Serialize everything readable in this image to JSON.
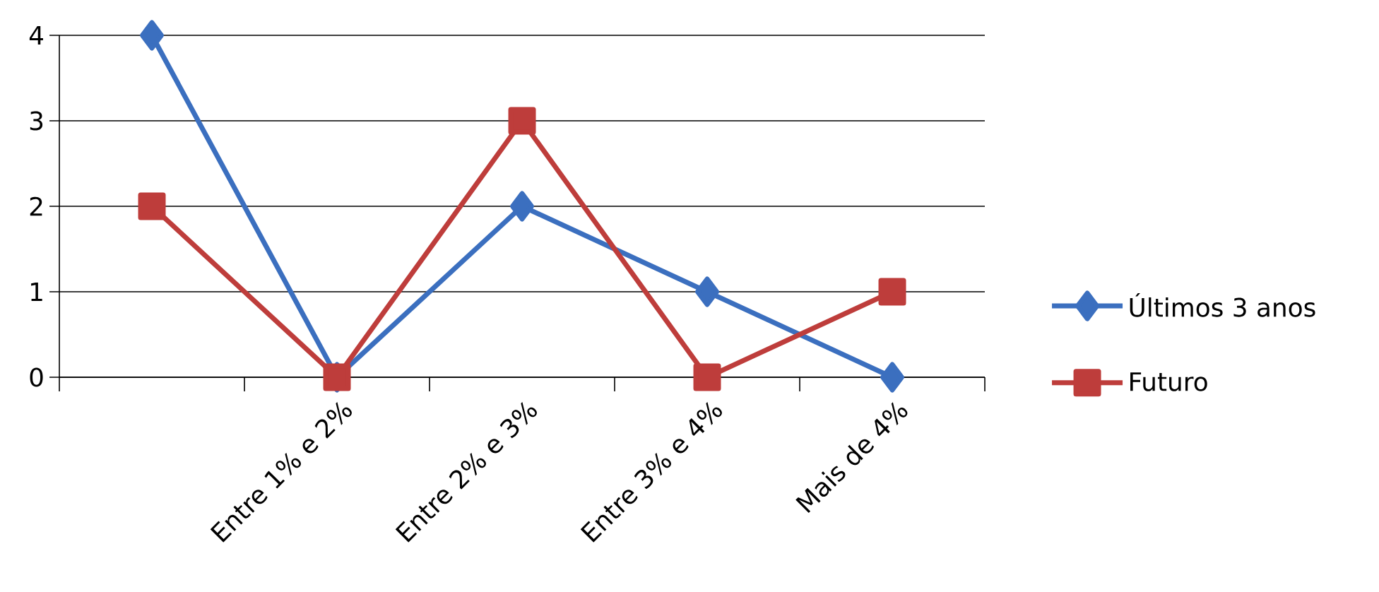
{
  "chart_data": {
    "type": "line",
    "categories": [
      null,
      "Entre 1% e 2%",
      "Entre 2% e 3%",
      "Entre 3% e 4%",
      "Mais de 4%"
    ],
    "series": [
      {
        "name": "Últimos 3 anos",
        "color": "#3b6fbf",
        "marker": "diamond",
        "values": [
          4,
          0,
          2,
          1,
          0
        ]
      },
      {
        "name": "Futuro",
        "color": "#be3d3b",
        "marker": "square",
        "values": [
          2,
          0,
          3,
          0,
          1
        ]
      }
    ],
    "ylim": [
      0,
      4
    ],
    "yticks": [
      0,
      1,
      2,
      3,
      4
    ],
    "grid": "y",
    "legend": "right"
  }
}
